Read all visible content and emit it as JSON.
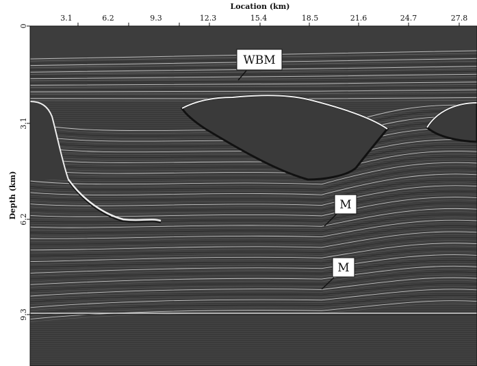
{
  "figure": {
    "x_axis": {
      "label": "Location (km)",
      "ticks": [
        "3.1",
        "6.2",
        "9.3",
        "12.3",
        "15.4",
        "18.5",
        "21.6",
        "24.7",
        "27.8"
      ]
    },
    "y_axis": {
      "label": "Depth (km)",
      "ticks": [
        "0",
        "3.1",
        "6.2",
        "9.3"
      ]
    },
    "annotations": [
      {
        "id": "wbm",
        "text": "WBM"
      },
      {
        "id": "m1",
        "text": "M"
      },
      {
        "id": "m2",
        "text": "M"
      }
    ],
    "colors": {
      "background": "#3c3c3c",
      "reflector_light": "#e8e8e8",
      "reflector_dark": "#111111",
      "callout_fill": "#ffffff"
    }
  }
}
